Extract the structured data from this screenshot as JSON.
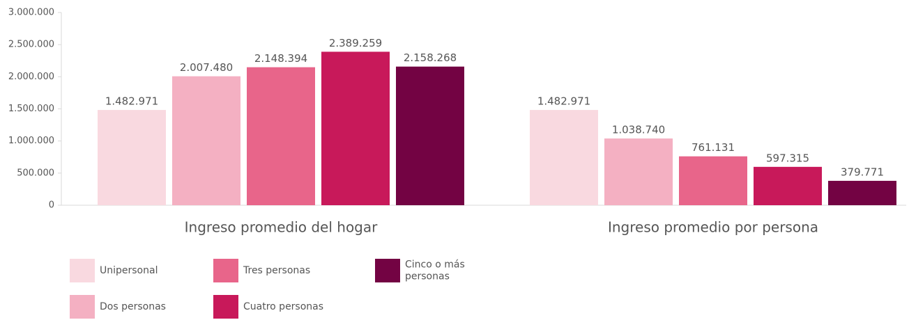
{
  "chart_data": {
    "type": "bar",
    "categories": [
      "Ingreso promedio del hogar",
      "Ingreso promedio por persona"
    ],
    "series": [
      {
        "name": "Unipersonal",
        "color": "#f9d9e0",
        "values": [
          1482971,
          1482971
        ],
        "value_labels": [
          "1.482.971",
          "1.482.971"
        ]
      },
      {
        "name": "Dos personas",
        "color": "#f4b0c2",
        "values": [
          2007480,
          1038740
        ],
        "value_labels": [
          "2.007.480",
          "1.038.740"
        ]
      },
      {
        "name": "Tres personas",
        "color": "#e8658a",
        "values": [
          2148394,
          761131
        ],
        "value_labels": [
          "2.148.394",
          "761.131"
        ]
      },
      {
        "name": "Cuatro personas",
        "color": "#c8195a",
        "values": [
          2389259,
          597315
        ],
        "value_labels": [
          "2.389.259",
          "597.315"
        ]
      },
      {
        "name": "Cinco o más personas",
        "color": "#730343",
        "values": [
          2158268,
          379771
        ],
        "value_labels": [
          "2.158.268",
          "379.771"
        ]
      }
    ],
    "ylim": [
      0,
      3000000
    ],
    "yticks": [
      0,
      {
        "value": 500000,
        "label": "500.000"
      },
      {
        "value": 1000000,
        "label": "1.000.000"
      },
      {
        "value": 1500000,
        "label": "1.500.000"
      },
      {
        "value": 2000000,
        "label": "2.000.000"
      },
      {
        "value": 2500000,
        "label": "2.500.000"
      },
      {
        "value": 3000000,
        "label": "3.000.000"
      }
    ]
  }
}
